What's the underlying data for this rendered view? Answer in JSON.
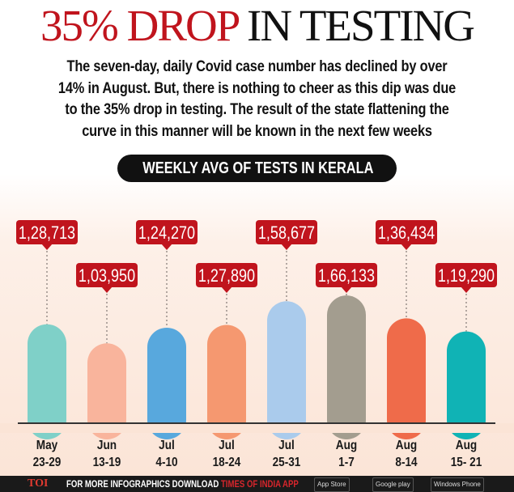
{
  "title": {
    "red_part": "35% DROP",
    "black_part": "IN TESTING"
  },
  "description_lines": [
    "The seven-day, daily Covid case number has declined by over",
    "14% in August. But, there is nothing to cheer as this dip was due",
    "to the 35% drop in testing. The result of the state flattening the",
    "curve in this manner will be known in the next few weeks"
  ],
  "chart_data": {
    "type": "bar",
    "title": "WEEKLY AVG OF TESTS IN KERALA",
    "categories": [
      [
        "May",
        "23-29"
      ],
      [
        "Jun",
        "13-19"
      ],
      [
        "Jul",
        "4-10"
      ],
      [
        "Jul",
        "18-24"
      ],
      [
        "Jul",
        "25-31"
      ],
      [
        "Aug",
        "1-7"
      ],
      [
        "Aug",
        "8-14"
      ],
      [
        "Aug",
        "15- 21"
      ]
    ],
    "values": [
      128713,
      103950,
      124270,
      127890,
      158677,
      166133,
      136434,
      119290
    ],
    "data_labels": [
      "1,28,713",
      "1,03,950",
      "1,24,270",
      "1,27,890",
      "1,58,677",
      "1,66,133",
      "1,36,434",
      "1,19,290"
    ],
    "bar_colors": [
      "#7fd0c8",
      "#f9b49c",
      "#58a8dd",
      "#f59870",
      "#aacbec",
      "#a39d8f",
      "#ef6b4a",
      "#10b3b5"
    ],
    "label_color": "#c0141d",
    "grid": false
  },
  "footer": {
    "logo": "TOI",
    "message": "FOR MORE  INFOGRAPHICS DOWNLOAD ",
    "app_name": "TIMES OF INDIA  APP",
    "stores": [
      "App Store",
      "Google play",
      "Windows Phone"
    ]
  }
}
